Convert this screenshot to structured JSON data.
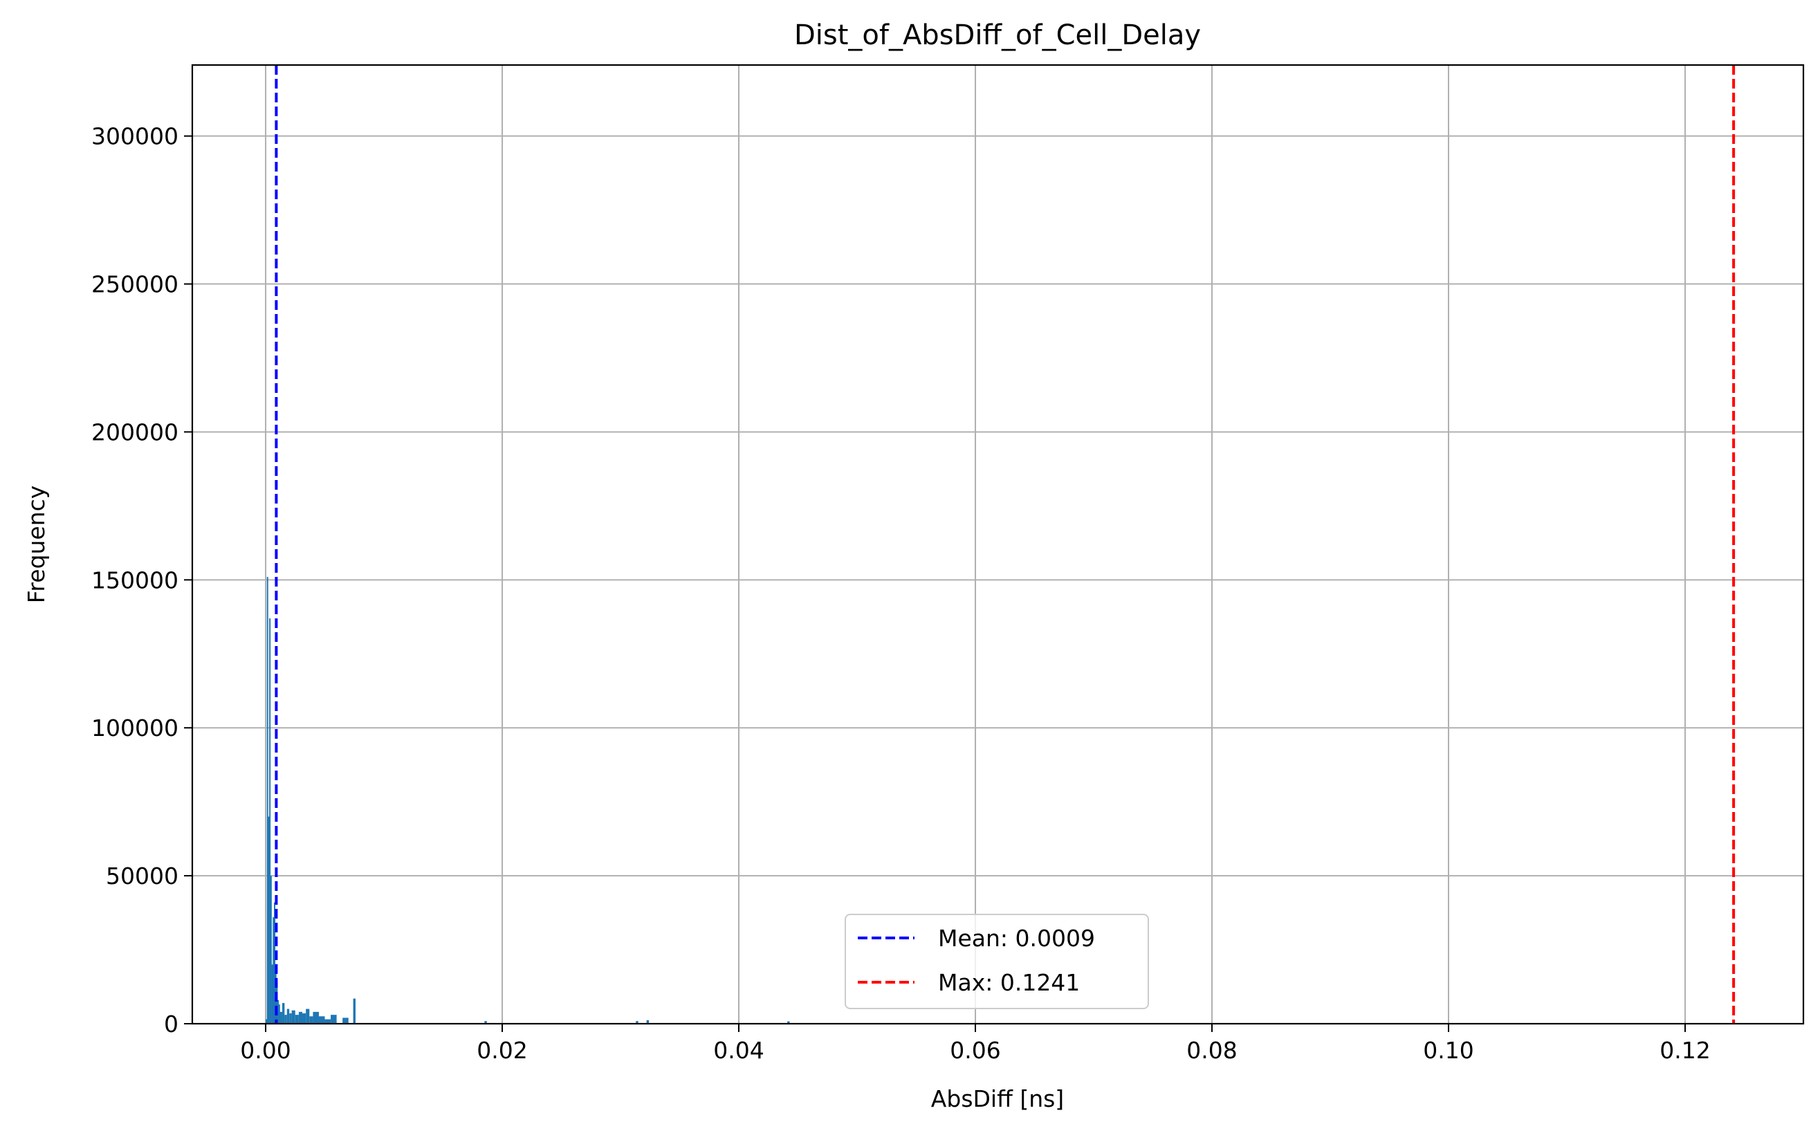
{
  "chart_data": {
    "type": "bar",
    "title": "Dist_of_AbsDiff_of_Cell_Delay",
    "xlabel": "AbsDiff [ns]",
    "ylabel": "Frequency",
    "xlim": [
      -0.0062,
      0.13
    ],
    "ylim": [
      0,
      324000
    ],
    "xticks": [
      0.0,
      0.02,
      0.04,
      0.06,
      0.08,
      0.1,
      0.12
    ],
    "xtick_labels": [
      "0.00",
      "0.02",
      "0.04",
      "0.06",
      "0.08",
      "0.10",
      "0.12"
    ],
    "yticks": [
      0,
      50000,
      100000,
      150000,
      200000,
      250000,
      300000
    ],
    "ytick_labels": [
      "0",
      "50000",
      "100000",
      "150000",
      "200000",
      "250000",
      "300000"
    ],
    "grid": true,
    "legend_position": "lower center",
    "bar_color": "#1f77b4",
    "histogram": {
      "bin_edges": [
        0.0,
        0.0001,
        0.0002,
        0.0003,
        0.0004,
        0.0005,
        0.0006,
        0.0007,
        0.0008,
        0.0009,
        0.001,
        0.0011,
        0.0012,
        0.0014,
        0.0016,
        0.0018,
        0.002,
        0.0022,
        0.0025,
        0.0028,
        0.0031,
        0.0034,
        0.0037,
        0.004,
        0.0045,
        0.005,
        0.0055,
        0.006,
        0.0065,
        0.007,
        0.0074,
        0.0076,
        0.0185,
        0.0187,
        0.0313,
        0.0315,
        0.0322,
        0.0324,
        0.0441,
        0.0443
      ],
      "counts": [
        1500,
        151000,
        70000,
        137000,
        50000,
        20000,
        36000,
        41000,
        20000,
        14000,
        8000,
        6500,
        4000,
        7000,
        3000,
        5000,
        3500,
        4500,
        3000,
        4000,
        3500,
        5000,
        2500,
        4000,
        2500,
        1500,
        3000,
        0,
        2000,
        0,
        8500,
        0,
        900,
        0,
        900,
        0,
        1200,
        0,
        800
      ]
    },
    "reference_lines": [
      {
        "name": "Mean: 0.0009",
        "x": 0.0009,
        "color": "#0000ff",
        "style": "dashed"
      },
      {
        "name": "Max: 0.1241",
        "x": 0.1241,
        "color": "#ff0000",
        "style": "dashed"
      }
    ]
  }
}
